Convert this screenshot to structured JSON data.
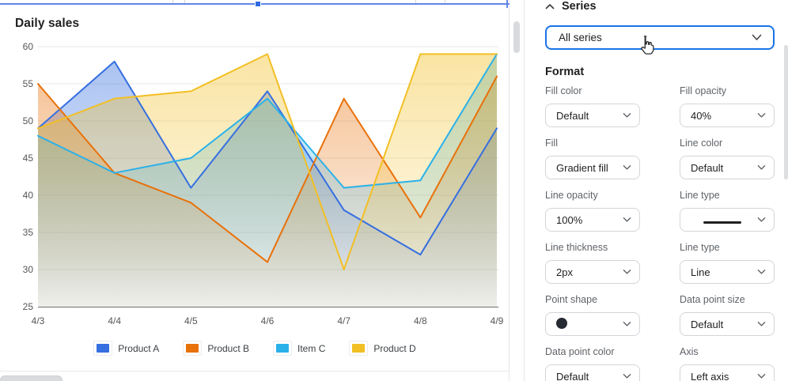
{
  "chart_data": {
    "type": "area",
    "title": "Daily sales",
    "x": [
      "4/3",
      "4/4",
      "4/5",
      "4/6",
      "4/7",
      "4/8",
      "4/9"
    ],
    "series": [
      {
        "name": "Product A",
        "color": "#366FE0",
        "values": [
          49,
          58,
          41,
          54,
          38,
          32,
          49
        ]
      },
      {
        "name": "Product B",
        "color": "#E8710A",
        "values": [
          55,
          43,
          39,
          31,
          53,
          37,
          56
        ]
      },
      {
        "name": "Item C",
        "color": "#2AB1EA",
        "values": [
          48,
          43,
          45,
          53,
          41,
          42,
          59
        ]
      },
      {
        "name": "Product D",
        "color": "#F2BF24",
        "values": [
          49,
          53,
          54,
          59,
          30,
          59,
          59
        ]
      }
    ],
    "ylim": [
      25,
      60
    ],
    "yticks": [
      60,
      55,
      50,
      45,
      40,
      35,
      30,
      25
    ],
    "xlabel": "",
    "ylabel": "",
    "grid": true,
    "legend_position": "bottom",
    "fill": "gradient",
    "fill_opacity": "40%"
  },
  "panel": {
    "section_title": "Series",
    "series_selector": {
      "value": "All series"
    },
    "format_title": "Format",
    "fields": [
      {
        "label": "Fill color",
        "value": "Default",
        "type": "text"
      },
      {
        "label": "Fill opacity",
        "value": "40%",
        "type": "text"
      },
      {
        "label": "Fill",
        "value": "Gradient fill",
        "type": "text"
      },
      {
        "label": "Line color",
        "value": "Default",
        "type": "text"
      },
      {
        "label": "Line opacity",
        "value": "100%",
        "type": "text"
      },
      {
        "label": "Line type",
        "value": "solid-line",
        "type": "line-preview"
      },
      {
        "label": "Line thickness",
        "value": "2px",
        "type": "text"
      },
      {
        "label": "Line type",
        "value": "Line",
        "type": "text"
      },
      {
        "label": "Point shape",
        "value": "circle",
        "type": "circle-preview"
      },
      {
        "label": "Data point size",
        "value": "Default",
        "type": "text"
      },
      {
        "label": "Data point color",
        "value": "Default",
        "type": "text"
      },
      {
        "label": "Axis",
        "value": "Left axis",
        "type": "text"
      }
    ]
  },
  "colors": {
    "accent_blue": "#1a73e8",
    "selection_blue": "#6286e8",
    "grid_line": "#e7e7e7",
    "axis_line": "#6f6f6f",
    "tick_text": "#565656"
  }
}
